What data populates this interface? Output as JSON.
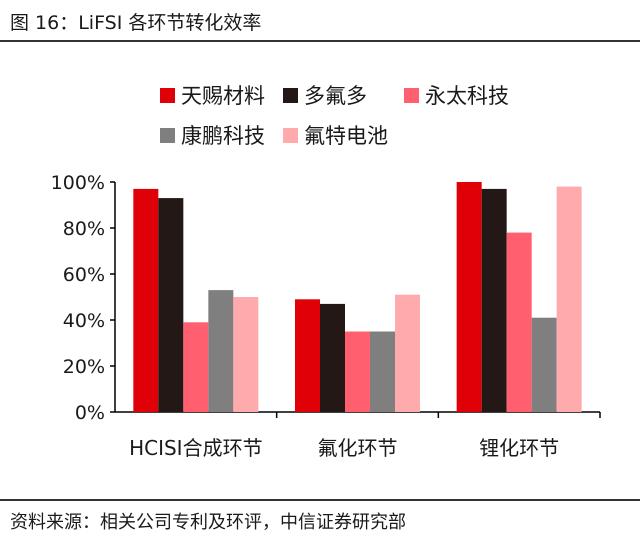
{
  "title": "图 16：LiFSI 各环节转化效率",
  "source": "资料来源：相关公司专利及环评，中信证券研究部",
  "chart_data": {
    "type": "bar",
    "categories": [
      "HCISI合成环节",
      "氟化环节",
      "锂化环节"
    ],
    "series": [
      {
        "name": "天赐材料",
        "color": "#e00008",
        "values": [
          97,
          49,
          100
        ]
      },
      {
        "name": "多氟多",
        "color": "#231815",
        "values": [
          93,
          47,
          97
        ]
      },
      {
        "name": "永太科技",
        "color": "#ff5f6f",
        "values": [
          39,
          35,
          78
        ]
      },
      {
        "name": "康鹏科技",
        "color": "#7f7f7f",
        "values": [
          53,
          35,
          41
        ]
      },
      {
        "name": "氟特电池",
        "color": "#ffabad",
        "values": [
          50,
          51,
          98
        ]
      }
    ],
    "ylim": [
      0,
      100
    ],
    "yticks": [
      "0%",
      "20%",
      "40%",
      "60%",
      "80%",
      "100%"
    ],
    "grid": false,
    "legend": "top"
  }
}
